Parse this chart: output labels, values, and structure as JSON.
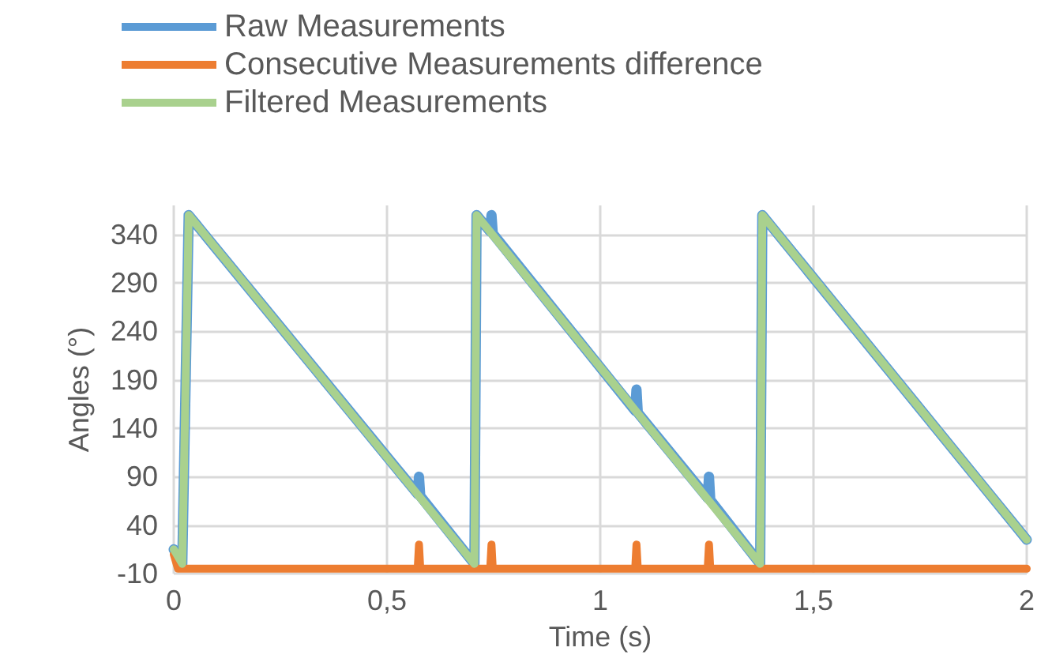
{
  "chart_data": {
    "type": "line",
    "xlabel": "Time (s)",
    "ylabel": "Angles (°)",
    "xlim": [
      0,
      2
    ],
    "xticks": [
      0,
      {
        "value": 0.5,
        "label": "0,5"
      },
      1,
      {
        "value": 1.5,
        "label": "1,5"
      },
      2
    ],
    "ylim": [
      -10,
      370
    ],
    "yticks": [
      -10,
      40,
      90,
      140,
      190,
      240,
      290,
      340
    ],
    "grid": true,
    "legend": "top left",
    "marker": "none",
    "series": [
      {
        "name": "Raw Measurements",
        "color": "#5b9bd5",
        "x": [
          0,
          0.02,
          0.035,
          0.572,
          0.575,
          0.578,
          0.705,
          0.71,
          0.742,
          0.745,
          0.748,
          1.082,
          1.085,
          1.088,
          1.252,
          1.255,
          1.258,
          1.375,
          1.38,
          2
        ],
        "values": [
          15,
          0,
          360,
          72,
          90,
          70,
          0,
          360,
          343,
          360,
          341,
          158,
          180,
          156,
          68,
          90,
          66,
          0,
          360,
          25
        ]
      },
      {
        "name": "Consecutive Measurements difference",
        "color": "#ed7d31",
        "x": [
          0,
          0.01,
          0.572,
          0.575,
          0.578,
          0.742,
          0.745,
          0.748,
          1.082,
          1.085,
          1.088,
          1.252,
          1.255,
          1.258,
          2
        ],
        "values": [
          10,
          -5,
          -5,
          20,
          -5,
          -5,
          20,
          -5,
          -5,
          20,
          -5,
          -5,
          20,
          -5,
          -5
        ]
      },
      {
        "name": "Filtered Measurements",
        "color": "#a9d18e",
        "x": [
          0,
          0.02,
          0.035,
          0.705,
          0.71,
          1.375,
          1.38,
          2
        ],
        "values": [
          15,
          0,
          360,
          0,
          360,
          0,
          360,
          25
        ]
      }
    ]
  }
}
